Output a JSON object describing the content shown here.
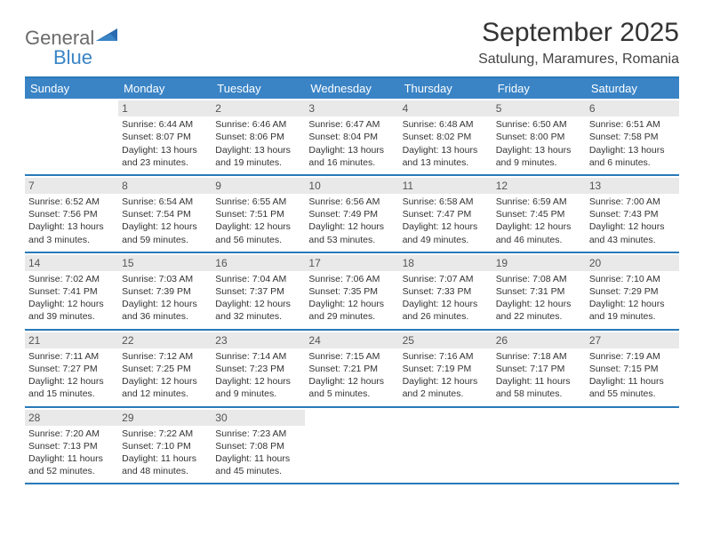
{
  "logo": {
    "general": "General",
    "blue": "Blue"
  },
  "title": "September 2025",
  "location": "Satulung, Maramures, Romania",
  "colors": {
    "header_bg": "#3a84c6",
    "border": "#2a7ab9",
    "daynum_bg": "#e9e9e9",
    "text": "#333333",
    "logo_gray": "#6b6b6b",
    "logo_blue": "#3a84c6"
  },
  "weekdays": [
    "Sunday",
    "Monday",
    "Tuesday",
    "Wednesday",
    "Thursday",
    "Friday",
    "Saturday"
  ],
  "weeks": [
    [
      null,
      {
        "n": "1",
        "sr": "Sunrise: 6:44 AM",
        "ss": "Sunset: 8:07 PM",
        "dl": "Daylight: 13 hours and 23 minutes."
      },
      {
        "n": "2",
        "sr": "Sunrise: 6:46 AM",
        "ss": "Sunset: 8:06 PM",
        "dl": "Daylight: 13 hours and 19 minutes."
      },
      {
        "n": "3",
        "sr": "Sunrise: 6:47 AM",
        "ss": "Sunset: 8:04 PM",
        "dl": "Daylight: 13 hours and 16 minutes."
      },
      {
        "n": "4",
        "sr": "Sunrise: 6:48 AM",
        "ss": "Sunset: 8:02 PM",
        "dl": "Daylight: 13 hours and 13 minutes."
      },
      {
        "n": "5",
        "sr": "Sunrise: 6:50 AM",
        "ss": "Sunset: 8:00 PM",
        "dl": "Daylight: 13 hours and 9 minutes."
      },
      {
        "n": "6",
        "sr": "Sunrise: 6:51 AM",
        "ss": "Sunset: 7:58 PM",
        "dl": "Daylight: 13 hours and 6 minutes."
      }
    ],
    [
      {
        "n": "7",
        "sr": "Sunrise: 6:52 AM",
        "ss": "Sunset: 7:56 PM",
        "dl": "Daylight: 13 hours and 3 minutes."
      },
      {
        "n": "8",
        "sr": "Sunrise: 6:54 AM",
        "ss": "Sunset: 7:54 PM",
        "dl": "Daylight: 12 hours and 59 minutes."
      },
      {
        "n": "9",
        "sr": "Sunrise: 6:55 AM",
        "ss": "Sunset: 7:51 PM",
        "dl": "Daylight: 12 hours and 56 minutes."
      },
      {
        "n": "10",
        "sr": "Sunrise: 6:56 AM",
        "ss": "Sunset: 7:49 PM",
        "dl": "Daylight: 12 hours and 53 minutes."
      },
      {
        "n": "11",
        "sr": "Sunrise: 6:58 AM",
        "ss": "Sunset: 7:47 PM",
        "dl": "Daylight: 12 hours and 49 minutes."
      },
      {
        "n": "12",
        "sr": "Sunrise: 6:59 AM",
        "ss": "Sunset: 7:45 PM",
        "dl": "Daylight: 12 hours and 46 minutes."
      },
      {
        "n": "13",
        "sr": "Sunrise: 7:00 AM",
        "ss": "Sunset: 7:43 PM",
        "dl": "Daylight: 12 hours and 43 minutes."
      }
    ],
    [
      {
        "n": "14",
        "sr": "Sunrise: 7:02 AM",
        "ss": "Sunset: 7:41 PM",
        "dl": "Daylight: 12 hours and 39 minutes."
      },
      {
        "n": "15",
        "sr": "Sunrise: 7:03 AM",
        "ss": "Sunset: 7:39 PM",
        "dl": "Daylight: 12 hours and 36 minutes."
      },
      {
        "n": "16",
        "sr": "Sunrise: 7:04 AM",
        "ss": "Sunset: 7:37 PM",
        "dl": "Daylight: 12 hours and 32 minutes."
      },
      {
        "n": "17",
        "sr": "Sunrise: 7:06 AM",
        "ss": "Sunset: 7:35 PM",
        "dl": "Daylight: 12 hours and 29 minutes."
      },
      {
        "n": "18",
        "sr": "Sunrise: 7:07 AM",
        "ss": "Sunset: 7:33 PM",
        "dl": "Daylight: 12 hours and 26 minutes."
      },
      {
        "n": "19",
        "sr": "Sunrise: 7:08 AM",
        "ss": "Sunset: 7:31 PM",
        "dl": "Daylight: 12 hours and 22 minutes."
      },
      {
        "n": "20",
        "sr": "Sunrise: 7:10 AM",
        "ss": "Sunset: 7:29 PM",
        "dl": "Daylight: 12 hours and 19 minutes."
      }
    ],
    [
      {
        "n": "21",
        "sr": "Sunrise: 7:11 AM",
        "ss": "Sunset: 7:27 PM",
        "dl": "Daylight: 12 hours and 15 minutes."
      },
      {
        "n": "22",
        "sr": "Sunrise: 7:12 AM",
        "ss": "Sunset: 7:25 PM",
        "dl": "Daylight: 12 hours and 12 minutes."
      },
      {
        "n": "23",
        "sr": "Sunrise: 7:14 AM",
        "ss": "Sunset: 7:23 PM",
        "dl": "Daylight: 12 hours and 9 minutes."
      },
      {
        "n": "24",
        "sr": "Sunrise: 7:15 AM",
        "ss": "Sunset: 7:21 PM",
        "dl": "Daylight: 12 hours and 5 minutes."
      },
      {
        "n": "25",
        "sr": "Sunrise: 7:16 AM",
        "ss": "Sunset: 7:19 PM",
        "dl": "Daylight: 12 hours and 2 minutes."
      },
      {
        "n": "26",
        "sr": "Sunrise: 7:18 AM",
        "ss": "Sunset: 7:17 PM",
        "dl": "Daylight: 11 hours and 58 minutes."
      },
      {
        "n": "27",
        "sr": "Sunrise: 7:19 AM",
        "ss": "Sunset: 7:15 PM",
        "dl": "Daylight: 11 hours and 55 minutes."
      }
    ],
    [
      {
        "n": "28",
        "sr": "Sunrise: 7:20 AM",
        "ss": "Sunset: 7:13 PM",
        "dl": "Daylight: 11 hours and 52 minutes."
      },
      {
        "n": "29",
        "sr": "Sunrise: 7:22 AM",
        "ss": "Sunset: 7:10 PM",
        "dl": "Daylight: 11 hours and 48 minutes."
      },
      {
        "n": "30",
        "sr": "Sunrise: 7:23 AM",
        "ss": "Sunset: 7:08 PM",
        "dl": "Daylight: 11 hours and 45 minutes."
      },
      null,
      null,
      null,
      null
    ]
  ]
}
